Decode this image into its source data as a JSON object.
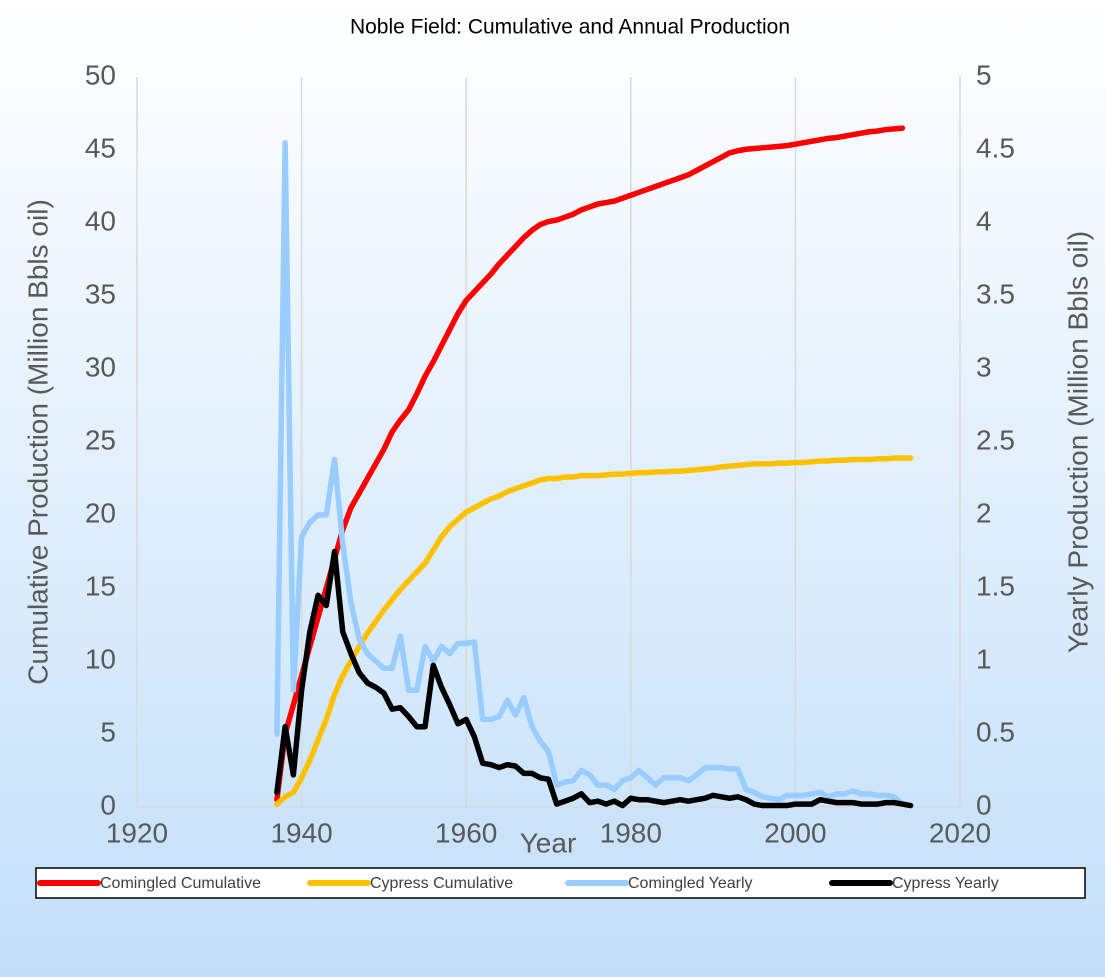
{
  "chart_data": {
    "type": "line",
    "title": "Noble Field: Cumulative and Annual Production",
    "xlabel": "Year",
    "ylabel": "Cumulative Production (Million Bbls oil)",
    "y2label": "Yearly Production (Million Bbls oil)",
    "x": [
      1937,
      1938,
      1939,
      1940,
      1941,
      1942,
      1943,
      1944,
      1945,
      1946,
      1947,
      1948,
      1949,
      1950,
      1951,
      1952,
      1953,
      1954,
      1955,
      1956,
      1957,
      1958,
      1959,
      1960,
      1961,
      1962,
      1963,
      1964,
      1965,
      1966,
      1967,
      1968,
      1969,
      1970,
      1971,
      1972,
      1973,
      1974,
      1975,
      1976,
      1977,
      1978,
      1979,
      1980,
      1981,
      1982,
      1983,
      1984,
      1985,
      1986,
      1987,
      1988,
      1989,
      1990,
      1991,
      1992,
      1993,
      1994,
      1995,
      1996,
      1997,
      1998,
      1999,
      2000,
      2001,
      2002,
      2003,
      2004,
      2005,
      2006,
      2007,
      2008,
      2009,
      2010,
      2011,
      2012,
      2013,
      2014
    ],
    "series": [
      {
        "name": "Comingled Cumulative",
        "color": "#ff0000",
        "values": [
          0.5,
          5,
          7,
          9,
          11,
          13,
          15,
          17,
          19,
          20.5,
          21.5,
          22.5,
          23.5,
          24.5,
          25.7,
          26.5,
          27.2,
          28.3,
          29.5,
          30.5,
          31.6,
          32.7,
          33.8,
          34.7,
          35.3,
          35.9,
          36.5,
          37.2,
          37.8,
          38.4,
          39,
          39.5,
          39.9,
          40.1,
          40.2,
          40.4,
          40.6,
          40.9,
          41.1,
          41.3,
          41.4,
          41.5,
          41.7,
          41.9,
          42.1,
          42.3,
          42.5,
          42.7,
          42.9,
          43.1,
          43.3,
          43.6,
          43.9,
          44.2,
          44.5,
          44.8,
          44.95,
          45.05,
          45.1,
          45.15,
          45.2,
          45.25,
          45.3,
          45.4,
          45.5,
          45.6,
          45.7,
          45.8,
          45.85,
          45.95,
          46.05,
          46.15,
          46.25,
          46.3,
          46.4,
          46.45,
          46.5,
          null
        ]
      },
      {
        "name": "Cypress Cumulative",
        "color": "#ffc000",
        "values": [
          0.2,
          0.7,
          1,
          2,
          3.2,
          4.6,
          6,
          7.7,
          9,
          10,
          11,
          11.9,
          12.7,
          13.5,
          14.2,
          14.9,
          15.5,
          16.1,
          16.7,
          17.6,
          18.5,
          19.2,
          19.7,
          20.2,
          20.5,
          20.8,
          21.1,
          21.3,
          21.6,
          21.8,
          22,
          22.2,
          22.4,
          22.5,
          22.5,
          22.6,
          22.6,
          22.7,
          22.7,
          22.7,
          22.75,
          22.8,
          22.8,
          22.85,
          22.9,
          22.9,
          22.95,
          22.95,
          23,
          23,
          23.05,
          23.1,
          23.15,
          23.2,
          23.3,
          23.35,
          23.4,
          23.45,
          23.5,
          23.5,
          23.5,
          23.55,
          23.55,
          23.6,
          23.6,
          23.65,
          23.7,
          23.7,
          23.75,
          23.75,
          23.8,
          23.8,
          23.8,
          23.85,
          23.85,
          23.9,
          23.9,
          23.9
        ]
      },
      {
        "name": "Comingled Yearly",
        "color": "#99ccff",
        "axis": "y2",
        "values": [
          0.5,
          4.55,
          0.8,
          1.85,
          1.95,
          2,
          2,
          2.38,
          1.8,
          1.4,
          1.15,
          1.05,
          1,
          0.95,
          0.95,
          1.17,
          0.8,
          0.8,
          1.1,
          1,
          1.1,
          1.05,
          1.12,
          1.12,
          1.13,
          0.6,
          0.6,
          0.62,
          0.73,
          0.63,
          0.75,
          0.55,
          0.45,
          0.38,
          0.15,
          0.17,
          0.18,
          0.25,
          0.22,
          0.15,
          0.15,
          0.12,
          0.18,
          0.2,
          0.25,
          0.2,
          0.15,
          0.2,
          0.2,
          0.2,
          0.18,
          0.22,
          0.27,
          0.27,
          0.27,
          0.26,
          0.26,
          0.12,
          0.1,
          0.07,
          0.06,
          0.05,
          0.08,
          0.08,
          0.08,
          0.09,
          0.1,
          0.07,
          0.09,
          0.09,
          0.11,
          0.09,
          0.09,
          0.08,
          0.08,
          0.07,
          0.02,
          null
        ]
      },
      {
        "name": "Cypress Yearly",
        "color": "#000000",
        "axis": "y2",
        "values": [
          0.1,
          0.55,
          0.22,
          0.8,
          1.2,
          1.45,
          1.38,
          1.75,
          1.2,
          1.05,
          0.92,
          0.85,
          0.82,
          0.78,
          0.67,
          0.68,
          0.62,
          0.55,
          0.55,
          0.97,
          0.82,
          0.7,
          0.57,
          0.6,
          0.48,
          0.3,
          0.29,
          0.27,
          0.29,
          0.28,
          0.23,
          0.23,
          0.2,
          0.19,
          0.02,
          0.04,
          0.06,
          0.09,
          0.03,
          0.04,
          0.02,
          0.04,
          0.01,
          0.06,
          0.05,
          0.05,
          0.04,
          0.03,
          0.04,
          0.05,
          0.04,
          0.05,
          0.06,
          0.08,
          0.07,
          0.06,
          0.07,
          0.05,
          0.02,
          0.01,
          0.01,
          0.01,
          0.01,
          0.02,
          0.02,
          0.02,
          0.05,
          0.04,
          0.03,
          0.03,
          0.03,
          0.02,
          0.02,
          0.02,
          0.03,
          0.03,
          0.02,
          0.01
        ]
      }
    ],
    "xlim": [
      1920,
      2020
    ],
    "xticks": [
      1920,
      1940,
      1960,
      1980,
      2000,
      2020
    ],
    "ylim": [
      0,
      50
    ],
    "yticks": [
      0,
      5,
      10,
      15,
      20,
      25,
      30,
      35,
      40,
      45,
      50
    ],
    "y2lim": [
      0,
      5
    ],
    "y2ticks": [
      0,
      0.5,
      1,
      1.5,
      2,
      2.5,
      3,
      3.5,
      4,
      4.5,
      5
    ],
    "grid": "x",
    "legend": "bottom"
  }
}
